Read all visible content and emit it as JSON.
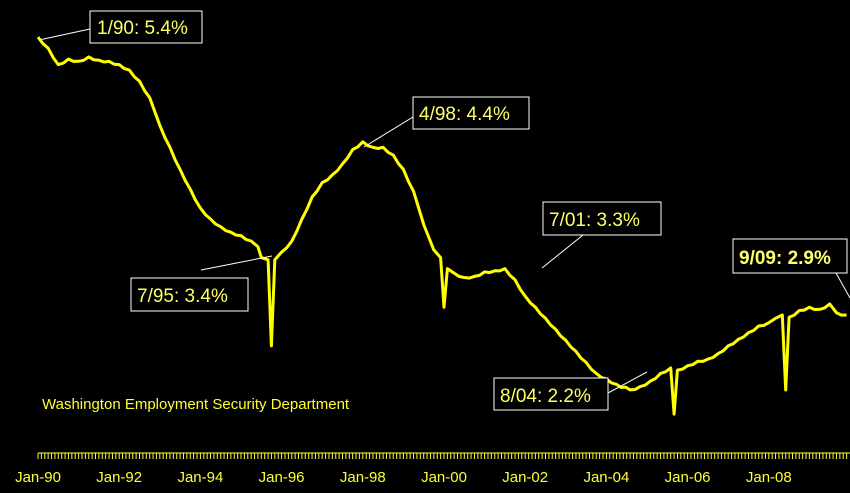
{
  "colors": {
    "background": "#000000",
    "line": "#ffff00",
    "text": "#ffff33",
    "box_fill": "#000000",
    "box_stroke": "#ffffff",
    "leader": "#ffffff"
  },
  "source_note": "Washington Employment Security Department",
  "chart_data": {
    "type": "line",
    "x_tick_labels": [
      "Jan-90",
      "Jan-92",
      "Jan-94",
      "Jan-96",
      "Jan-98",
      "Jan-00",
      "Jan-02",
      "Jan-04",
      "Jan-06",
      "Jan-08"
    ],
    "xlim": [
      "1990-01",
      "2009-12"
    ],
    "ylim": [
      2.0,
      5.6
    ],
    "grid": false,
    "series": [
      {
        "values": [
          [
            "1990-01",
            5.4
          ],
          [
            "1990-04",
            5.3
          ],
          [
            "1990-07",
            5.15
          ],
          [
            "1990-10",
            5.2
          ],
          [
            "1991-01",
            5.18
          ],
          [
            "1991-04",
            5.22
          ],
          [
            "1991-07",
            5.19
          ],
          [
            "1991-10",
            5.18
          ],
          [
            "1992-01",
            5.15
          ],
          [
            "1992-04",
            5.1
          ],
          [
            "1992-07",
            5.0
          ],
          [
            "1992-10",
            4.85
          ],
          [
            "1993-01",
            4.6
          ],
          [
            "1993-04",
            4.4
          ],
          [
            "1993-07",
            4.2
          ],
          [
            "1993-10",
            4.02
          ],
          [
            "1994-01",
            3.85
          ],
          [
            "1994-04",
            3.75
          ],
          [
            "1994-07",
            3.68
          ],
          [
            "1994-10",
            3.63
          ],
          [
            "1995-01",
            3.6
          ],
          [
            "1995-04",
            3.55
          ],
          [
            "1995-06",
            3.5
          ],
          [
            "1995-07",
            3.4
          ],
          [
            "1995-09",
            3.38
          ],
          [
            "1995-10",
            2.6
          ],
          [
            "1995-11",
            3.38
          ],
          [
            "1996-01",
            3.45
          ],
          [
            "1996-04",
            3.55
          ],
          [
            "1996-07",
            3.75
          ],
          [
            "1996-10",
            3.95
          ],
          [
            "1997-01",
            4.08
          ],
          [
            "1997-04",
            4.15
          ],
          [
            "1997-07",
            4.25
          ],
          [
            "1997-10",
            4.38
          ],
          [
            "1998-01",
            4.45
          ],
          [
            "1998-04",
            4.4
          ],
          [
            "1998-07",
            4.4
          ],
          [
            "1998-10",
            4.33
          ],
          [
            "1999-01",
            4.2
          ],
          [
            "1999-04",
            4.0
          ],
          [
            "1999-07",
            3.7
          ],
          [
            "1999-10",
            3.47
          ],
          [
            "1999-12",
            3.4
          ],
          [
            "2000-01",
            2.95
          ],
          [
            "2000-02",
            3.3
          ],
          [
            "2000-04",
            3.26
          ],
          [
            "2000-07",
            3.22
          ],
          [
            "2000-10",
            3.23
          ],
          [
            "2001-01",
            3.27
          ],
          [
            "2001-04",
            3.28
          ],
          [
            "2001-07",
            3.3
          ],
          [
            "2001-10",
            3.2
          ],
          [
            "2002-01",
            3.05
          ],
          [
            "2002-04",
            2.95
          ],
          [
            "2002-07",
            2.85
          ],
          [
            "2002-10",
            2.75
          ],
          [
            "2003-01",
            2.65
          ],
          [
            "2003-04",
            2.55
          ],
          [
            "2003-07",
            2.45
          ],
          [
            "2003-10",
            2.35
          ],
          [
            "2004-01",
            2.3
          ],
          [
            "2004-04",
            2.25
          ],
          [
            "2004-08",
            2.2
          ],
          [
            "2004-11",
            2.23
          ],
          [
            "2005-02",
            2.28
          ],
          [
            "2005-05",
            2.35
          ],
          [
            "2005-08",
            2.4
          ],
          [
            "2005-09",
            1.98
          ],
          [
            "2005-10",
            2.38
          ],
          [
            "2006-01",
            2.42
          ],
          [
            "2006-04",
            2.46
          ],
          [
            "2006-07",
            2.48
          ],
          [
            "2006-10",
            2.53
          ],
          [
            "2007-01",
            2.6
          ],
          [
            "2007-04",
            2.66
          ],
          [
            "2007-07",
            2.72
          ],
          [
            "2007-10",
            2.78
          ],
          [
            "2008-01",
            2.81
          ],
          [
            "2008-03",
            2.85
          ],
          [
            "2008-05",
            2.88
          ],
          [
            "2008-06",
            2.2
          ],
          [
            "2008-07",
            2.86
          ],
          [
            "2008-10",
            2.92
          ],
          [
            "2009-01",
            2.95
          ],
          [
            "2009-04",
            2.93
          ],
          [
            "2009-07",
            2.98
          ],
          [
            "2009-09",
            2.9
          ],
          [
            "2009-12",
            2.88
          ]
        ]
      }
    ],
    "annotations": [
      {
        "text": "1/90: 5.4%",
        "bold": false
      },
      {
        "text": "7/95: 3.4%",
        "bold": false
      },
      {
        "text": "4/98: 4.4%",
        "bold": false
      },
      {
        "text": "7/01: 3.3%",
        "bold": false
      },
      {
        "text": "8/04: 2.2%",
        "bold": false
      },
      {
        "text": "9/09: 2.9%",
        "bold": true
      }
    ]
  }
}
